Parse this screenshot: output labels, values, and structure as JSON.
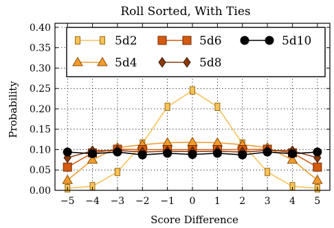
{
  "chart_data": {
    "type": "line",
    "title": "Roll Sorted, With Ties",
    "xlabel": "Score Difference",
    "ylabel": "Probability",
    "xlim": [
      -5.5,
      5.5
    ],
    "ylim": [
      0.0,
      0.41
    ],
    "x": [
      -5,
      -4,
      -3,
      -2,
      -1,
      0,
      1,
      2,
      3,
      4,
      5
    ],
    "x_ticks": [
      "−5",
      "−4",
      "−3",
      "−2",
      "−1",
      "0",
      "1",
      "2",
      "3",
      "4",
      "5"
    ],
    "y_ticks": [
      {
        "value": 0.0,
        "label": "0.00"
      },
      {
        "value": 0.05,
        "label": "0.05"
      },
      {
        "value": 0.1,
        "label": "0.10"
      },
      {
        "value": 0.15,
        "label": "0.15"
      },
      {
        "value": 0.2,
        "label": "0.20"
      },
      {
        "value": 0.25,
        "label": "0.25"
      },
      {
        "value": 0.3,
        "label": "0.30"
      },
      {
        "value": 0.35,
        "label": "0.35"
      },
      {
        "value": 0.4,
        "label": "0.40"
      }
    ],
    "grid": true,
    "legend_position": "top",
    "series": [
      {
        "name": "5d2",
        "marker": "square-narrow",
        "color": "#f6c25a",
        "stroke": "#9a6a10",
        "values": [
          0.005,
          0.01,
          0.045,
          0.115,
          0.205,
          0.245,
          0.205,
          0.115,
          0.045,
          0.01,
          0.005
        ]
      },
      {
        "name": "5d4",
        "marker": "triangle",
        "color": "#f39b2c",
        "stroke": "#8a4e06",
        "values": [
          0.025,
          0.075,
          0.105,
          0.112,
          0.117,
          0.118,
          0.117,
          0.112,
          0.105,
          0.075,
          0.025
        ]
      },
      {
        "name": "5d6",
        "marker": "square",
        "color": "#d45a10",
        "stroke": "#6e2a00",
        "values": [
          0.057,
          0.092,
          0.101,
          0.1,
          0.1,
          0.1,
          0.1,
          0.1,
          0.101,
          0.092,
          0.057
        ]
      },
      {
        "name": "5d8",
        "marker": "diamond",
        "color": "#8b3a0e",
        "stroke": "#3a1400",
        "values": [
          0.08,
          0.097,
          0.098,
          0.094,
          0.096,
          0.095,
          0.096,
          0.094,
          0.098,
          0.097,
          0.08
        ]
      },
      {
        "name": "5d10",
        "marker": "circle",
        "color": "#000000",
        "stroke": "#000000",
        "values": [
          0.094,
          0.09,
          0.094,
          0.087,
          0.091,
          0.088,
          0.091,
          0.087,
          0.094,
          0.09,
          0.094
        ]
      }
    ]
  }
}
